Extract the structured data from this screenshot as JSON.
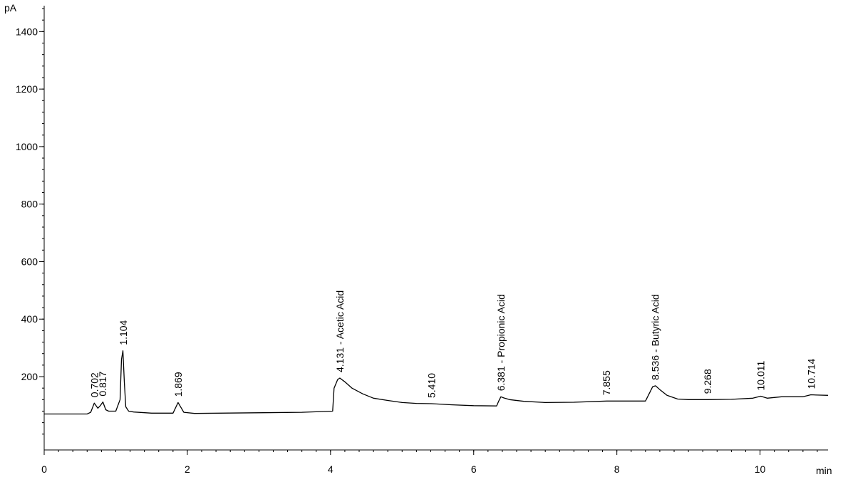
{
  "chart_data": {
    "type": "line",
    "title": "",
    "xlabel": "min",
    "ylabel": "pA",
    "xlim": [
      0,
      10.95
    ],
    "ylim": [
      -55,
      1490
    ],
    "grid": false,
    "x_ticks": [
      0,
      2,
      4,
      6,
      8,
      10
    ],
    "y_ticks": [
      200,
      400,
      600,
      800,
      1000,
      1200,
      1400
    ],
    "series": [
      {
        "color": "#000000",
        "x": [
          0,
          0.6,
          0.65,
          0.7,
          0.75,
          0.78,
          0.82,
          0.86,
          0.9,
          1.0,
          1.06,
          1.08,
          1.1,
          1.12,
          1.14,
          1.18,
          1.25,
          1.5,
          1.8,
          1.87,
          1.95,
          2.1,
          3.6,
          4.03,
          4.05,
          4.1,
          4.13,
          4.2,
          4.3,
          4.45,
          4.6,
          4.8,
          5.0,
          5.2,
          5.41,
          5.7,
          6.0,
          6.32,
          6.35,
          6.38,
          6.42,
          6.5,
          6.7,
          7.0,
          7.4,
          7.86,
          8.4,
          8.47,
          8.5,
          8.54,
          8.6,
          8.7,
          8.85,
          9.0,
          9.27,
          9.6,
          9.9,
          10.01,
          10.1,
          10.3,
          10.6,
          10.71,
          10.8,
          10.95
        ],
        "y": [
          70,
          70,
          76,
          108,
          90,
          98,
          112,
          85,
          80,
          80,
          120,
          260,
          290,
          180,
          95,
          80,
          77,
          73,
          73,
          110,
          76,
          72,
          76,
          80,
          160,
          190,
          195,
          182,
          160,
          140,
          125,
          117,
          110,
          107,
          106,
          102,
          99,
          98,
          115,
          130,
          126,
          120,
          114,
          110,
          111,
          115,
          115,
          150,
          165,
          168,
          155,
          135,
          122,
          120,
          120,
          121,
          125,
          132,
          125,
          130,
          130,
          137,
          136,
          135
        ]
      }
    ],
    "peak_labels": [
      {
        "text": "0.702",
        "x": 0.702,
        "y": 108
      },
      {
        "text": "0.817",
        "x": 0.817,
        "y": 112
      },
      {
        "text": "1.104",
        "x": 1.104,
        "y": 290
      },
      {
        "text": "1.869",
        "x": 1.869,
        "y": 110
      },
      {
        "text": "4.131 -  Acetic Acid",
        "x": 4.131,
        "y": 195
      },
      {
        "text": "5.410",
        "x": 5.41,
        "y": 106
      },
      {
        "text": "6.381 -  Propionic Acid",
        "x": 6.381,
        "y": 130
      },
      {
        "text": "7.855",
        "x": 7.855,
        "y": 115
      },
      {
        "text": "8.536 -  Butyric Acid",
        "x": 8.536,
        "y": 168
      },
      {
        "text": "9.268",
        "x": 9.268,
        "y": 120
      },
      {
        "text": "10.011",
        "x": 10.011,
        "y": 132
      },
      {
        "text": "10.714",
        "x": 10.714,
        "y": 137
      }
    ]
  }
}
